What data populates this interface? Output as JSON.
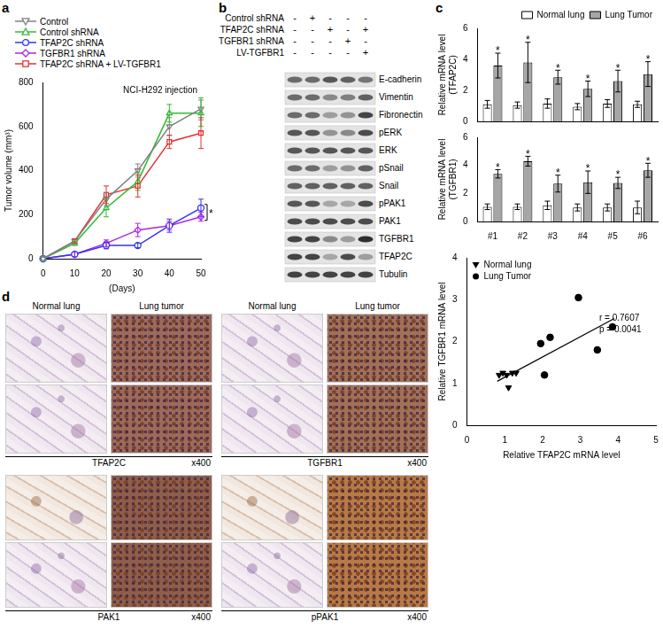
{
  "panel_labels": [
    "a",
    "b",
    "c",
    "d"
  ],
  "chart_data": [
    {
      "type": "line",
      "title": "NCI-H292 injection",
      "x_label": "(Days)",
      "y_label": "Tumor volume (mm³)",
      "x": [
        0,
        10,
        20,
        30,
        40,
        50
      ],
      "xlim": [
        0,
        50
      ],
      "xticks": [
        0,
        10,
        20,
        30,
        40,
        50
      ],
      "ylim": [
        0,
        800
      ],
      "yticks": [
        0,
        200,
        400,
        600,
        800
      ],
      "grid": false,
      "legend": "top-left",
      "series": [
        {
          "name": "Control",
          "color": "#808080",
          "marker": "triangle-down",
          "values": [
            0,
            80,
            270,
            400,
            600,
            680
          ],
          "errors": [
            0,
            10,
            30,
            30,
            40,
            50
          ]
        },
        {
          "name": "Control shRNA",
          "color": "#33bb33",
          "marker": "triangle",
          "values": [
            0,
            70,
            230,
            350,
            660,
            660
          ],
          "errors": [
            0,
            10,
            40,
            40,
            40,
            60
          ]
        },
        {
          "name": "TFAP2C shRNA",
          "color": "#3333ee",
          "marker": "circle",
          "values": [
            0,
            20,
            60,
            60,
            150,
            230
          ],
          "errors": [
            0,
            10,
            15,
            10,
            30,
            40
          ]
        },
        {
          "name": "TGFBR1 shRNA",
          "color": "#b026e0",
          "marker": "diamond",
          "values": [
            0,
            20,
            70,
            130,
            150,
            190
          ],
          "errors": [
            0,
            10,
            15,
            30,
            20,
            20
          ]
        },
        {
          "name": "TFAP2C shRNA + LV-TGFBR1",
          "color": "#e83030",
          "marker": "square",
          "values": [
            0,
            80,
            290,
            330,
            530,
            570
          ],
          "errors": [
            0,
            10,
            40,
            50,
            30,
            70
          ]
        }
      ],
      "annotation": {
        "text": "*",
        "series": [
          "TFAP2C shRNA",
          "TGFBR1 shRNA"
        ]
      }
    },
    {
      "type": "bar",
      "y_label": [
        "Relative mRNA level",
        "(TFAP2C)"
      ],
      "categories": [
        "#1",
        "#2",
        "#3",
        "#4",
        "#5",
        "#6"
      ],
      "ylim": [
        0,
        6
      ],
      "yticks": [
        0,
        2,
        4,
        6
      ],
      "grid": false,
      "legend": "top-right",
      "tick_labels": "y",
      "series": [
        {
          "name": "Normal lung",
          "color": "#ffffff",
          "values": [
            1.1,
            1.05,
            1.15,
            0.95,
            1.15,
            1.1
          ],
          "errors": [
            0.25,
            0.2,
            0.3,
            0.2,
            0.25,
            0.2
          ]
        },
        {
          "name": "Lung Tumor",
          "color": "#a6a6a6",
          "values": [
            3.6,
            3.8,
            2.85,
            2.1,
            2.6,
            3.05
          ],
          "errors": [
            0.8,
            1.3,
            0.45,
            0.5,
            0.7,
            0.8
          ],
          "annotations": [
            "*",
            "*",
            "*",
            "*",
            "*",
            "*"
          ]
        }
      ]
    },
    {
      "type": "bar",
      "y_label": [
        "Relative mRNA level",
        "(TGFBR1)"
      ],
      "categories": [
        "#1",
        "#2",
        "#3",
        "#4",
        "#5",
        "#6"
      ],
      "ylim": [
        0,
        6
      ],
      "yticks": [
        0,
        2,
        4,
        6
      ],
      "grid": false,
      "series": [
        {
          "name": "Normal lung",
          "color": "#ffffff",
          "values": [
            1.05,
            1.05,
            1.15,
            1.0,
            1.0,
            1.0
          ],
          "errors": [
            0.2,
            0.2,
            0.3,
            0.25,
            0.25,
            0.45
          ]
        },
        {
          "name": "Lung Tumor",
          "color": "#a6a6a6",
          "values": [
            3.4,
            4.3,
            2.7,
            2.8,
            2.75,
            3.65
          ],
          "errors": [
            0.3,
            0.35,
            0.6,
            0.8,
            0.4,
            0.5
          ],
          "annotations": [
            "*",
            "*",
            "*",
            "*",
            "*",
            "*"
          ]
        }
      ]
    },
    {
      "type": "scatter",
      "x_label": "Relative TFAP2C mRNA level",
      "y_label": "Relative TGFBR1 mRNA level",
      "xlim": [
        0,
        5
      ],
      "xticks": [
        0,
        1,
        2,
        3,
        4,
        5
      ],
      "ylim": [
        0,
        4
      ],
      "yticks": [
        0,
        1,
        2,
        3,
        4
      ],
      "grid": false,
      "legend": "top-left",
      "series": [
        {
          "name": "Normal lung",
          "color": "#000000",
          "marker": "triangle-down",
          "x": [
            0.85,
            0.95,
            1.05,
            1.1,
            1.2,
            1.3
          ],
          "values": [
            1.2,
            1.25,
            1.2,
            0.9,
            1.25,
            1.25
          ]
        },
        {
          "name": "Lung Tumor",
          "color": "#000000",
          "marker": "circle",
          "x": [
            1.95,
            2.05,
            2.2,
            2.95,
            3.45,
            3.85
          ],
          "values": [
            1.95,
            1.2,
            2.1,
            3.05,
            1.8,
            2.35
          ]
        }
      ],
      "trend_line": {
        "x": [
          0.8,
          3.9
        ],
        "y": [
          1.05,
          2.55
        ]
      },
      "annotations": [
        "r = 0.7607",
        "p = 0.0041"
      ]
    }
  ],
  "blot": {
    "conditions": [
      {
        "name": "Control shRNA",
        "signs": [
          "-",
          "+",
          "-",
          "-",
          "-"
        ]
      },
      {
        "name": "TFAP2C shRNA",
        "signs": [
          "-",
          "-",
          "+",
          "-",
          "+"
        ]
      },
      {
        "name": "TGFBR1 shRNA",
        "signs": [
          "-",
          "-",
          "-",
          "+",
          "-"
        ]
      },
      {
        "name": "LV-TGFBR1",
        "signs": [
          "-",
          "-",
          "-",
          "-",
          "+"
        ]
      }
    ],
    "bands": [
      {
        "name": "E-cadherin",
        "levels": [
          0.6,
          0.6,
          0.7,
          0.65,
          0.55
        ]
      },
      {
        "name": "Vimentin",
        "levels": [
          0.6,
          0.6,
          0.45,
          0.5,
          0.65
        ]
      },
      {
        "name": "Fibronectin",
        "levels": [
          0.6,
          0.6,
          0.35,
          0.4,
          0.8
        ]
      },
      {
        "name": "pERK",
        "levels": [
          0.7,
          0.7,
          0.4,
          0.45,
          0.75
        ]
      },
      {
        "name": "ERK",
        "levels": [
          0.7,
          0.7,
          0.7,
          0.7,
          0.7
        ]
      },
      {
        "name": "pSnail",
        "levels": [
          0.6,
          0.6,
          0.35,
          0.4,
          0.65
        ]
      },
      {
        "name": "Snail",
        "levels": [
          0.65,
          0.65,
          0.65,
          0.65,
          0.65
        ]
      },
      {
        "name": "pPAK1",
        "levels": [
          0.7,
          0.7,
          0.3,
          0.3,
          0.75
        ]
      },
      {
        "name": "PAK1",
        "levels": [
          0.75,
          0.75,
          0.75,
          0.75,
          0.75
        ]
      },
      {
        "name": "TGFBR1",
        "levels": [
          0.8,
          0.8,
          0.45,
          0.35,
          0.9
        ]
      },
      {
        "name": "TFAP2C",
        "levels": [
          0.8,
          0.8,
          0.3,
          0.75,
          0.35
        ]
      },
      {
        "name": "Tubulin",
        "levels": [
          0.8,
          0.8,
          0.8,
          0.8,
          0.8
        ]
      }
    ]
  },
  "histology": {
    "columns": [
      "Normal lung",
      "Lung tumor"
    ],
    "magnification": "x400",
    "stains": [
      "TFAP2C",
      "TGFBR1",
      "PAK1",
      "pPAK1"
    ]
  }
}
